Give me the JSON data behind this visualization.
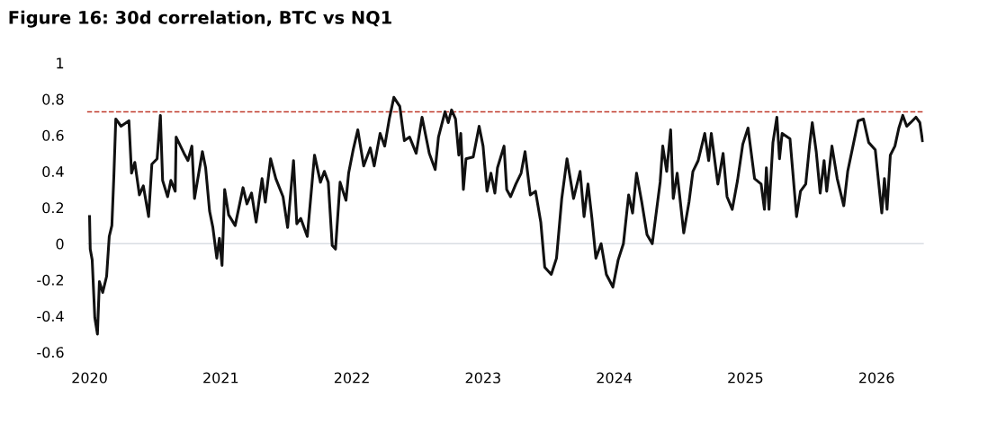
{
  "chart_data": {
    "type": "line",
    "title": "Figure 16: 30d correlation, BTC vs NQ1",
    "x": [
      2020.0,
      2020.005,
      2020.02,
      2020.04,
      2020.06,
      2020.075,
      2020.1,
      2020.13,
      2020.15,
      2020.17,
      2020.185,
      2020.2,
      2020.24,
      2020.3,
      2020.32,
      2020.345,
      2020.38,
      2020.41,
      2020.45,
      2020.475,
      2020.515,
      2020.54,
      2020.557,
      2020.595,
      2020.62,
      2020.653,
      2020.66,
      2020.72,
      2020.75,
      2020.78,
      2020.8,
      2020.86,
      2020.885,
      2020.915,
      2020.94,
      2020.97,
      2020.99,
      2021.01,
      2021.03,
      2021.06,
      2021.11,
      2021.17,
      2021.2,
      2021.235,
      2021.27,
      2021.315,
      2021.34,
      2021.38,
      2021.42,
      2021.475,
      2021.51,
      2021.555,
      2021.58,
      2021.61,
      2021.66,
      2021.715,
      2021.76,
      2021.79,
      2021.82,
      2021.85,
      2021.875,
      2021.91,
      2021.955,
      2021.975,
      2022.01,
      2022.045,
      2022.09,
      2022.14,
      2022.17,
      2022.215,
      2022.25,
      2022.285,
      2022.32,
      2022.365,
      2022.4,
      2022.44,
      2022.49,
      2022.535,
      2022.59,
      2022.635,
      2022.66,
      2022.71,
      2022.735,
      2022.76,
      2022.79,
      2022.815,
      2022.83,
      2022.85,
      2022.87,
      2022.925,
      2022.97,
      2023.0,
      2023.03,
      2023.06,
      2023.09,
      2023.11,
      2023.16,
      2023.18,
      2023.21,
      2023.25,
      2023.29,
      2023.32,
      2023.36,
      2023.4,
      2023.44,
      2023.47,
      2023.52,
      2023.56,
      2023.6,
      2023.64,
      2023.69,
      2023.74,
      2023.77,
      2023.8,
      2023.83,
      2023.86,
      2023.9,
      2023.94,
      2023.99,
      2024.03,
      2024.07,
      2024.11,
      2024.14,
      2024.17,
      2024.21,
      2024.25,
      2024.29,
      2024.35,
      2024.37,
      2024.4,
      2024.43,
      2024.45,
      2024.48,
      2024.53,
      2024.57,
      2024.6,
      2024.64,
      2024.69,
      2024.72,
      2024.74,
      2024.79,
      2024.83,
      2024.86,
      2024.9,
      2024.94,
      2024.98,
      2025.02,
      2025.07,
      2025.12,
      2025.145,
      2025.16,
      2025.18,
      2025.21,
      2025.24,
      2025.26,
      2025.28,
      2025.34,
      2025.36,
      2025.39,
      2025.42,
      2025.46,
      2025.49,
      2025.51,
      2025.54,
      2025.57,
      2025.6,
      2025.62,
      2025.66,
      2025.7,
      2025.75,
      2025.78,
      2025.82,
      2025.86,
      2025.9,
      2025.94,
      2025.99,
      2026.04,
      2026.06,
      2026.08,
      2026.105,
      2026.14,
      2026.17,
      2026.2,
      2026.23,
      2026.26,
      2026.3,
      2026.33,
      2026.35
    ],
    "series": [
      {
        "color": "#111111",
        "values": [
          0.15,
          -0.03,
          -0.09,
          -0.41,
          -0.5,
          -0.21,
          -0.27,
          -0.18,
          0.04,
          0.1,
          0.37,
          0.69,
          0.65,
          0.68,
          0.39,
          0.45,
          0.27,
          0.32,
          0.15,
          0.44,
          0.47,
          0.71,
          0.35,
          0.26,
          0.35,
          0.29,
          0.59,
          0.5,
          0.46,
          0.54,
          0.25,
          0.51,
          0.42,
          0.18,
          0.09,
          -0.08,
          0.03,
          -0.12,
          0.3,
          0.16,
          0.1,
          0.31,
          0.22,
          0.28,
          0.12,
          0.36,
          0.23,
          0.47,
          0.36,
          0.26,
          0.09,
          0.46,
          0.11,
          0.14,
          0.04,
          0.49,
          0.34,
          0.4,
          0.34,
          -0.01,
          -0.03,
          0.34,
          0.24,
          0.39,
          0.52,
          0.63,
          0.43,
          0.53,
          0.43,
          0.61,
          0.54,
          0.69,
          0.81,
          0.76,
          0.57,
          0.59,
          0.5,
          0.7,
          0.5,
          0.41,
          0.59,
          0.73,
          0.67,
          0.74,
          0.69,
          0.49,
          0.61,
          0.3,
          0.47,
          0.48,
          0.65,
          0.54,
          0.29,
          0.39,
          0.28,
          0.42,
          0.54,
          0.3,
          0.26,
          0.33,
          0.39,
          0.51,
          0.27,
          0.29,
          0.12,
          -0.13,
          -0.17,
          -0.08,
          0.25,
          0.47,
          0.25,
          0.4,
          0.15,
          0.33,
          0.14,
          -0.08,
          0.0,
          -0.17,
          -0.24,
          -0.09,
          0.0,
          0.27,
          0.17,
          0.39,
          0.23,
          0.05,
          0.0,
          0.34,
          0.54,
          0.4,
          0.63,
          0.25,
          0.39,
          0.06,
          0.23,
          0.4,
          0.46,
          0.61,
          0.46,
          0.61,
          0.33,
          0.5,
          0.26,
          0.19,
          0.35,
          0.55,
          0.64,
          0.36,
          0.33,
          0.19,
          0.42,
          0.19,
          0.56,
          0.7,
          0.47,
          0.61,
          0.58,
          0.41,
          0.15,
          0.29,
          0.33,
          0.55,
          0.67,
          0.51,
          0.28,
          0.46,
          0.29,
          0.54,
          0.36,
          0.21,
          0.4,
          0.54,
          0.68,
          0.69,
          0.56,
          0.52,
          0.17,
          0.36,
          0.19,
          0.49,
          0.54,
          0.64,
          0.71,
          0.65,
          0.67,
          0.7,
          0.67,
          0.57
        ]
      }
    ],
    "xlim": [
      2019.98,
      2026.36
    ],
    "ylim": [
      -0.6,
      1
    ],
    "xticks": [
      2020,
      2021,
      2022,
      2023,
      2024,
      2025,
      2026
    ],
    "yticks": [
      {
        "value": -0.6,
        "label": "-0.6"
      },
      {
        "value": -0.4,
        "label": "-0.4"
      },
      {
        "value": -0.2,
        "label": "-0.2"
      },
      0,
      0.2,
      0.4,
      0.6,
      0.8,
      1
    ],
    "ref_lines": [
      {
        "axis": "y",
        "value": 0,
        "color": "#d9dde3",
        "line_style": "solid"
      },
      {
        "axis": "y",
        "value": 0.73,
        "color": "#c0392b",
        "line_style": "dashed"
      }
    ],
    "grid": false,
    "legend": false,
    "marker": "none",
    "line_style": "solid"
  }
}
